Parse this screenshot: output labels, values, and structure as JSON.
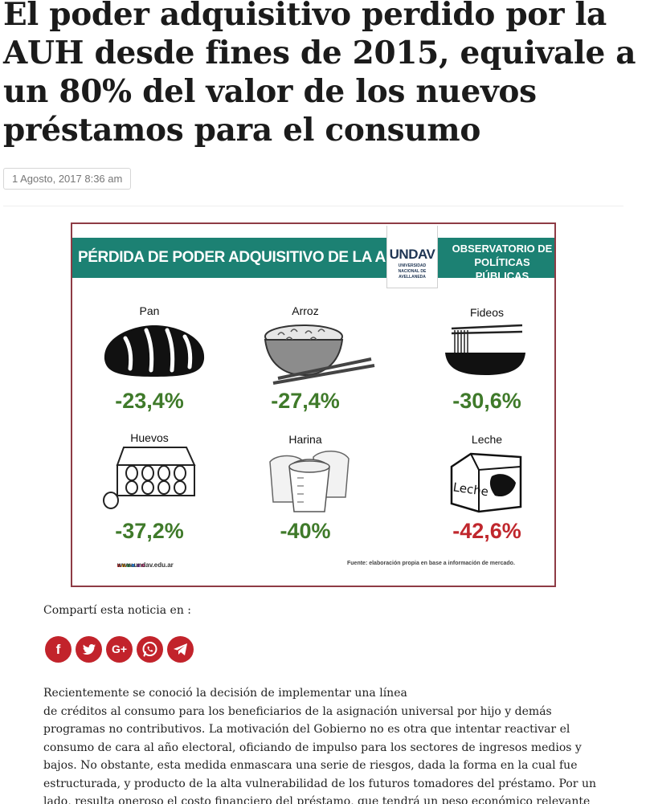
{
  "article": {
    "title": "El poder adquisitivo perdido por la AUH desde fines de 2015, equivale a un 80% del valor de los nuevos préstamos para el consumo",
    "date": "1 Agosto, 2017 8:36 am"
  },
  "infographic": {
    "title": "PÉRDIDA DE PODER ADQUISITIVO DE LA AUH",
    "logo_mark": "UNDAV",
    "logo_sub_1": "UNIVERSIDAD",
    "logo_sub_2": "NACIONAL DE",
    "logo_sub_3": "AVELLANEDA",
    "observatory_1": "OBSERVATORIO DE",
    "observatory_2": "POLÍTICAS PÚBLICAS",
    "items": [
      {
        "label": "Pan",
        "value": "-23,4%",
        "icon": "bread-icon",
        "color": "#3f7a2a"
      },
      {
        "label": "Arroz",
        "value": "-27,4%",
        "icon": "rice-bowl-icon",
        "color": "#3f7a2a"
      },
      {
        "label": "Fideos",
        "value": "-30,6%",
        "icon": "noodles-icon",
        "color": "#3f7a2a"
      },
      {
        "label": "Huevos",
        "value": "-37,2%",
        "icon": "eggs-icon",
        "color": "#3f7a2a"
      },
      {
        "label": "Harina",
        "value": "-40%",
        "icon": "flour-icon",
        "color": "#3f7a2a"
      },
      {
        "label": "Leche",
        "value": "-42,6%",
        "icon": "milk-carton-icon",
        "color": "#c0272d"
      }
    ],
    "carton_text": "Leche",
    "website": "www.undav.edu.ar",
    "source": "Fuente: elaboración propia en base a información de mercado.",
    "band_color": "#1c8173"
  },
  "share": {
    "label": "Compartí esta noticia en :",
    "buttons": [
      {
        "name": "facebook",
        "glyph": "f"
      },
      {
        "name": "twitter",
        "glyph": "t"
      },
      {
        "name": "google-plus",
        "glyph": "G+"
      },
      {
        "name": "whatsapp",
        "glyph": "w"
      },
      {
        "name": "telegram",
        "glyph": "➤"
      }
    ],
    "color": "#c2232b"
  },
  "body": {
    "line_1": "Recientemente se conoció la decisión de implementar una línea",
    "line_2": "de créditos al consumo para los beneficiarios de la asignación universal por hijo y demás programas no contributivos. La motivación del Gobierno no es otra que intentar reactivar el consumo de cara al año electoral, oficiando de impulso para los sectores de ingresos medios y bajos. No obstante, esta medida enmascara una serie de riesgos, dada la forma en la cual fue estructurada, y producto de la alta vulnerabilidad de los futuros tomadores del préstamo. Por un lado, resulta oneroso el costo financiero del préstamo, que tendrá un peso económico relevante para familias con escasa capacidad de ahorro."
  }
}
